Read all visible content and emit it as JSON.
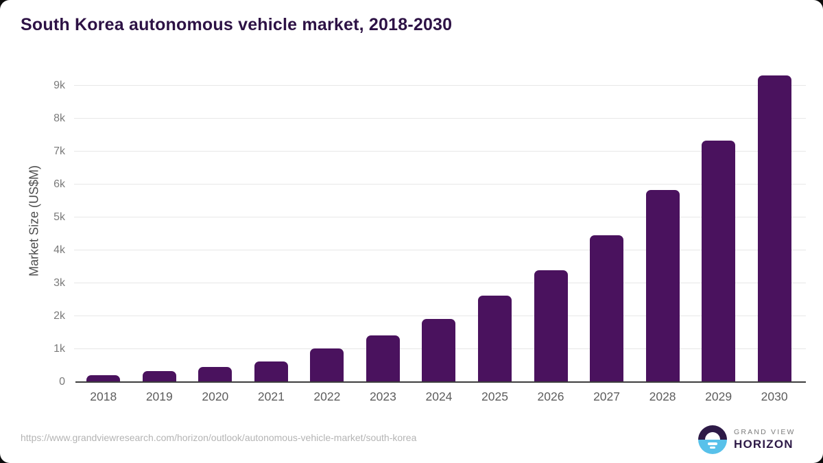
{
  "title": "South Korea autonomous vehicle market, 2018-2030",
  "source_url": "https://www.grandviewresearch.com/horizon/outlook/autonomous-vehicle-market/south-korea",
  "logo": {
    "line1": "GRAND VIEW",
    "line2": "HORIZON",
    "mark_top_color": "#2e1a47",
    "mark_bottom_color": "#58c1ea"
  },
  "colors": {
    "title": "#2d1245",
    "bar": "#4a125e",
    "gridline": "#e7e7e7",
    "axis_line": "#3c3c3c",
    "tick_text": "#7a7a7a",
    "x_label_text": "#5d5d5d",
    "y_axis_title_text": "#4d4d4d",
    "source_text": "#b4b4b4",
    "background": "#ffffff"
  },
  "chart_data": {
    "type": "bar",
    "title": "South Korea autonomous vehicle market, 2018-2030",
    "xlabel": "",
    "ylabel": "Market Size (US$M)",
    "categories": [
      "2018",
      "2019",
      "2020",
      "2021",
      "2022",
      "2023",
      "2024",
      "2025",
      "2026",
      "2027",
      "2028",
      "2029",
      "2030"
    ],
    "values": [
      210,
      330,
      450,
      620,
      1030,
      1410,
      1920,
      2630,
      3400,
      4450,
      5840,
      7330,
      9320
    ],
    "series_name": "Market Size (US$M)",
    "ylim": [
      0,
      9000
    ],
    "ytick_labels": [
      "0",
      "1k",
      "2k",
      "3k",
      "4k",
      "5k",
      "6k",
      "7k",
      "8k",
      "9k"
    ],
    "grid": true,
    "legend": false,
    "bar_color": "#4a125e"
  }
}
